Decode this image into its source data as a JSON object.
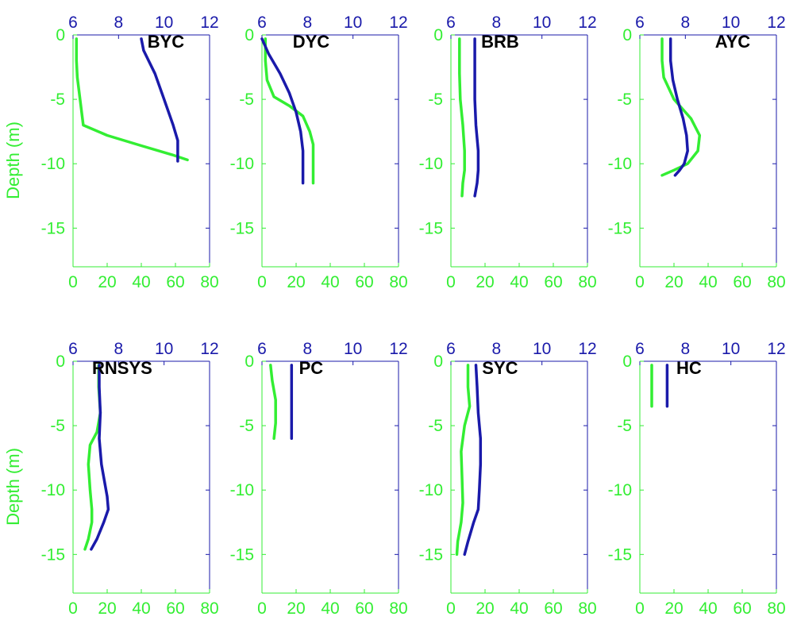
{
  "figure": {
    "ylabel": "Depth (m)",
    "colors": {
      "green_axis": "#33ee33",
      "blue_axis": "#1a1aaa",
      "frame": "#1a1aaa",
      "title": "#000000"
    }
  },
  "chart_data": [
    {
      "type": "line",
      "title": "BYC",
      "xlim_bottom": [
        0,
        80
      ],
      "xticks_bottom": [
        "0",
        "20",
        "40",
        "60",
        "80"
      ],
      "xlim_top": [
        6,
        12
      ],
      "xticks_top": [
        "6",
        "8",
        "10",
        "12"
      ],
      "ylim": [
        -18,
        0
      ],
      "yticks": [
        "0",
        "-5",
        "-10",
        "-15"
      ],
      "series": [
        {
          "color": "green",
          "axis": "bottom",
          "x": [
            2,
            2,
            2.5,
            6,
            20,
            40,
            58,
            67
          ],
          "y": [
            -0.3,
            -2,
            -3.3,
            -7,
            -7.8,
            -8.6,
            -9.3,
            -9.7
          ]
        },
        {
          "color": "blue",
          "axis": "top",
          "x": [
            9.0,
            9.1,
            9.6,
            10.0,
            10.4,
            10.6,
            10.6,
            10.6
          ],
          "y": [
            -0.3,
            -1.2,
            -3,
            -5,
            -7,
            -8.2,
            -9.2,
            -9.8
          ]
        }
      ]
    },
    {
      "type": "line",
      "title": "DYC",
      "xlim_bottom": [
        0,
        80
      ],
      "xticks_bottom": [
        "0",
        "20",
        "40",
        "60",
        "80"
      ],
      "xlim_top": [
        6,
        12
      ],
      "xticks_top": [
        "6",
        "8",
        "10",
        "12"
      ],
      "ylim": [
        -18,
        0
      ],
      "yticks": [
        "0",
        "-5",
        "-10",
        "-15"
      ],
      "series": [
        {
          "color": "green",
          "axis": "bottom",
          "x": [
            2,
            2,
            3,
            7,
            16,
            24,
            28,
            30,
            30,
            30
          ],
          "y": [
            -0.3,
            -2,
            -3.5,
            -4.8,
            -5.5,
            -6.3,
            -7.5,
            -8.5,
            -10,
            -11.5
          ]
        },
        {
          "color": "blue",
          "axis": "top",
          "x": [
            6.0,
            6.3,
            6.8,
            7.2,
            7.5,
            7.7,
            7.8,
            7.8
          ],
          "y": [
            -0.3,
            -1.5,
            -3,
            -4.5,
            -6,
            -7.5,
            -9,
            -11.5
          ]
        }
      ]
    },
    {
      "type": "line",
      "title": "BRB",
      "xlim_bottom": [
        0,
        80
      ],
      "xticks_bottom": [
        "0",
        "20",
        "40",
        "60",
        "80"
      ],
      "xlim_top": [
        6,
        12
      ],
      "xticks_top": [
        "6",
        "8",
        "10",
        "12"
      ],
      "ylim": [
        -18,
        0
      ],
      "yticks": [
        "0",
        "-5",
        "-10",
        "-15"
      ],
      "series": [
        {
          "color": "green",
          "axis": "bottom",
          "x": [
            5,
            5,
            5.5,
            7,
            8,
            8,
            7,
            6.5
          ],
          "y": [
            -0.3,
            -3,
            -5,
            -7,
            -9,
            -10.5,
            -11.5,
            -12.5
          ]
        },
        {
          "color": "blue",
          "axis": "top",
          "x": [
            7.05,
            7.05,
            7.05,
            7.1,
            7.2,
            7.2,
            7.15,
            7.05
          ],
          "y": [
            -0.3,
            -3,
            -5,
            -7,
            -9,
            -10.5,
            -11.5,
            -12.5
          ]
        }
      ]
    },
    {
      "type": "line",
      "title": "AYC",
      "xlim_bottom": [
        0,
        80
      ],
      "xticks_bottom": [
        "0",
        "20",
        "40",
        "60",
        "80"
      ],
      "xlim_top": [
        6,
        12
      ],
      "xticks_top": [
        "6",
        "8",
        "10",
        "12"
      ],
      "ylim": [
        -18,
        0
      ],
      "yticks": [
        "0",
        "-5",
        "-10",
        "-15"
      ],
      "series": [
        {
          "color": "green",
          "axis": "bottom",
          "x": [
            13,
            13,
            14,
            20,
            30,
            35,
            34,
            28,
            20,
            13
          ],
          "y": [
            -0.3,
            -2,
            -3.3,
            -5,
            -6.5,
            -7.8,
            -9,
            -10,
            -10.5,
            -10.9
          ]
        },
        {
          "color": "blue",
          "axis": "top",
          "x": [
            7.35,
            7.35,
            7.45,
            7.65,
            7.9,
            8.05,
            8.1,
            7.95,
            7.75,
            7.55
          ],
          "y": [
            -0.3,
            -2,
            -3.5,
            -5,
            -6.5,
            -7.8,
            -9,
            -10,
            -10.5,
            -10.9
          ]
        }
      ]
    },
    {
      "type": "line",
      "title": "RNSYS",
      "xlim_bottom": [
        0,
        80
      ],
      "xticks_bottom": [
        "0",
        "20",
        "40",
        "60",
        "80"
      ],
      "xlim_top": [
        6,
        12
      ],
      "xticks_top": [
        "6",
        "8",
        "10",
        "12"
      ],
      "ylim": [
        -18,
        0
      ],
      "yticks": [
        "0",
        "-5",
        "-10",
        "-15"
      ],
      "series": [
        {
          "color": "green",
          "axis": "bottom",
          "x": [
            15,
            15,
            16,
            14,
            10,
            9,
            10,
            11,
            11,
            9,
            7
          ],
          "y": [
            -0.3,
            -2,
            -4,
            -5.5,
            -6.5,
            -8,
            -10,
            -11.5,
            -12.5,
            -13.8,
            -14.6
          ]
        },
        {
          "color": "blue",
          "axis": "top",
          "x": [
            7.15,
            7.15,
            7.2,
            7.15,
            7.25,
            7.4,
            7.5,
            7.55,
            7.35,
            7.05,
            6.8
          ],
          "y": [
            -0.3,
            -2,
            -4,
            -6,
            -8,
            -9.5,
            -10.5,
            -11.5,
            -12.5,
            -13.8,
            -14.6
          ]
        }
      ]
    },
    {
      "type": "line",
      "title": "PC",
      "xlim_bottom": [
        0,
        80
      ],
      "xticks_bottom": [
        "0",
        "20",
        "40",
        "60",
        "80"
      ],
      "xlim_top": [
        6,
        12
      ],
      "xticks_top": [
        "6",
        "8",
        "10",
        "12"
      ],
      "ylim": [
        -18,
        0
      ],
      "yticks": [
        "0",
        "-5",
        "-10",
        "-15"
      ],
      "series": [
        {
          "color": "green",
          "axis": "bottom",
          "x": [
            5,
            6,
            8,
            8,
            7
          ],
          "y": [
            -0.3,
            -1.5,
            -3,
            -4.8,
            -6
          ]
        },
        {
          "color": "blue",
          "axis": "top",
          "x": [
            7.3,
            7.3,
            7.3,
            7.3,
            7.3
          ],
          "y": [
            -0.3,
            -1.5,
            -3,
            -4.8,
            -6
          ]
        }
      ]
    },
    {
      "type": "line",
      "title": "SYC",
      "xlim_bottom": [
        0,
        80
      ],
      "xticks_bottom": [
        "0",
        "20",
        "40",
        "60",
        "80"
      ],
      "xlim_top": [
        6,
        12
      ],
      "xticks_top": [
        "6",
        "8",
        "10",
        "12"
      ],
      "ylim": [
        -18,
        0
      ],
      "yticks": [
        "0",
        "-5",
        "-10",
        "-15"
      ],
      "series": [
        {
          "color": "green",
          "axis": "bottom",
          "x": [
            10,
            10,
            11,
            8,
            6,
            6.5,
            7,
            6,
            4,
            3.5
          ],
          "y": [
            -0.3,
            -2,
            -3.5,
            -5,
            -7,
            -9,
            -11,
            -12.5,
            -14,
            -15
          ]
        },
        {
          "color": "blue",
          "axis": "top",
          "x": [
            7.1,
            7.15,
            7.2,
            7.3,
            7.3,
            7.25,
            7.2,
            7.0,
            6.75,
            6.6
          ],
          "y": [
            -0.3,
            -2,
            -4,
            -6,
            -8,
            -10,
            -11.5,
            -12.5,
            -14,
            -15
          ]
        }
      ]
    },
    {
      "type": "line",
      "title": "HC",
      "xlim_bottom": [
        0,
        80
      ],
      "xticks_bottom": [
        "0",
        "20",
        "40",
        "60",
        "80"
      ],
      "xlim_top": [
        6,
        12
      ],
      "xticks_top": [
        "6",
        "8",
        "10",
        "12"
      ],
      "ylim": [
        -18,
        0
      ],
      "yticks": [
        "0",
        "-5",
        "-10",
        "-15"
      ],
      "series": [
        {
          "color": "green",
          "axis": "bottom",
          "x": [
            7,
            7
          ],
          "y": [
            -0.3,
            -3.5
          ]
        },
        {
          "color": "blue",
          "axis": "top",
          "x": [
            7.2,
            7.2
          ],
          "y": [
            -0.3,
            -3.5
          ]
        }
      ]
    }
  ]
}
